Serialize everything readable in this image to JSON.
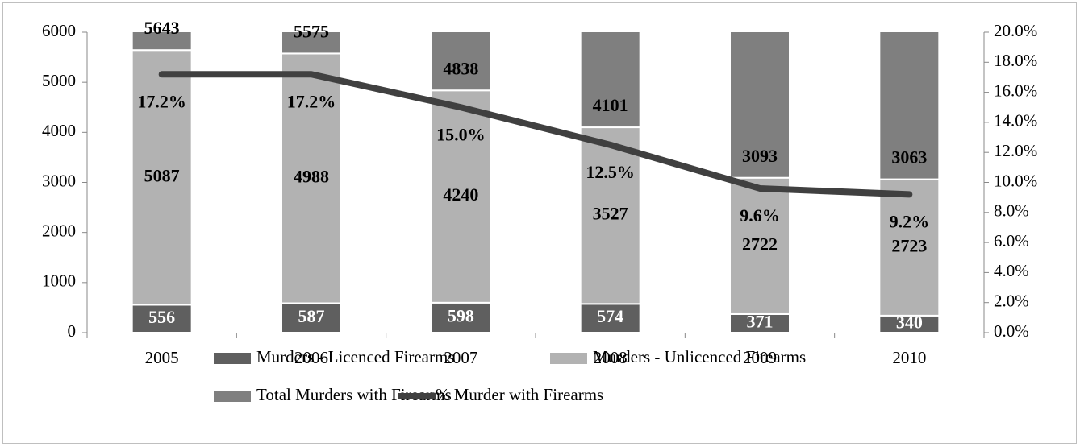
{
  "chart_data": {
    "type": "bar",
    "stacked": true,
    "categories": [
      "2005",
      "2006",
      "2007",
      "2008",
      "2009",
      "2010"
    ],
    "series": [
      {
        "name": "Murders - Licenced Firearms",
        "type": "bar",
        "color": "#5f5f5f",
        "label_color": "#ffffff",
        "values": [
          556,
          587,
          598,
          574,
          371,
          340
        ]
      },
      {
        "name": "Murders - Unlicenced Firearms",
        "type": "bar",
        "color": "#b2b2b2",
        "label_color": "#000000",
        "values": [
          5087,
          4988,
          4240,
          3527,
          2722,
          2723
        ]
      },
      {
        "name": "Total Murders with Firearms",
        "type": "bar",
        "color": "#7f7f7f",
        "label_color": "#000000",
        "values": [
          5643,
          5575,
          4838,
          4101,
          3093,
          3063
        ]
      },
      {
        "name": "% Murder with Firearms",
        "type": "line",
        "axis": "y2",
        "color": "#404040",
        "label_color": "#000000",
        "values": [
          17.2,
          17.2,
          15.0,
          12.5,
          9.6,
          9.2
        ],
        "value_labels": [
          "17.2%",
          "17.2%",
          "15.0%",
          "12.5%",
          "9.6%",
          "9.2%"
        ]
      }
    ],
    "ylim": [
      0,
      6000
    ],
    "yticks": [
      0,
      1000,
      2000,
      3000,
      4000,
      5000,
      6000
    ],
    "y2lim": [
      0,
      20
    ],
    "y2ticks": [
      {
        "value": 0,
        "label": "0.0%"
      },
      {
        "value": 2,
        "label": "2.0%"
      },
      {
        "value": 4,
        "label": "4.0%"
      },
      {
        "value": 6,
        "label": "6.0%"
      },
      {
        "value": 8,
        "label": "8.0%"
      },
      {
        "value": 10,
        "label": "10.0%"
      },
      {
        "value": 12,
        "label": "12.0%"
      },
      {
        "value": 14,
        "label": "14.0%"
      },
      {
        "value": 16,
        "label": "16.0%"
      },
      {
        "value": 18,
        "label": "18.0%"
      },
      {
        "value": 20,
        "label": "20.0%"
      }
    ],
    "legend": "bottom"
  }
}
